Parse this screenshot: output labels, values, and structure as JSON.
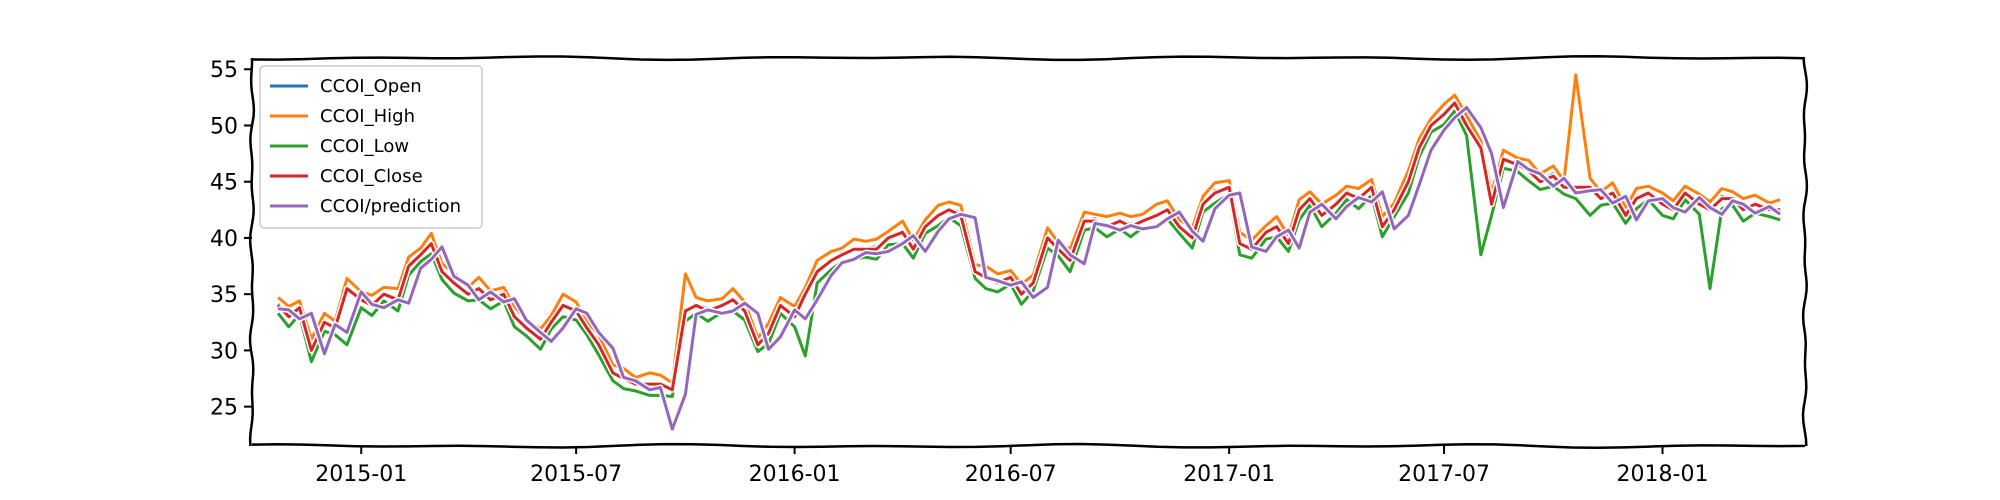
{
  "chart_data": {
    "type": "line",
    "title": "",
    "xlabel": "",
    "ylabel": "",
    "x_range": [
      "2014-10-01",
      "2018-05-01"
    ],
    "ylim": [
      21.5,
      56
    ],
    "x_ticks": [
      {
        "date": "2015-01-01",
        "label": "2015-01"
      },
      {
        "date": "2015-07-01",
        "label": "2015-07"
      },
      {
        "date": "2016-01-01",
        "label": "2016-01"
      },
      {
        "date": "2016-07-01",
        "label": "2016-07"
      },
      {
        "date": "2017-01-01",
        "label": "2017-01"
      },
      {
        "date": "2017-07-01",
        "label": "2017-07"
      },
      {
        "date": "2018-01-01",
        "label": "2018-01"
      }
    ],
    "y_ticks": [
      {
        "value": 25,
        "label": "25"
      },
      {
        "value": 30,
        "label": "30"
      },
      {
        "value": 35,
        "label": "35"
      },
      {
        "value": 40,
        "label": "40"
      },
      {
        "value": 45,
        "label": "45"
      },
      {
        "value": 50,
        "label": "50"
      },
      {
        "value": 55,
        "label": "55"
      }
    ],
    "grid": false,
    "legend_position": "top-left",
    "dates": [
      "2014-10-23",
      "2014-11-01",
      "2014-11-10",
      "2014-11-20",
      "2014-12-01",
      "2014-12-10",
      "2014-12-20",
      "2015-01-01",
      "2015-01-10",
      "2015-01-20",
      "2015-02-01",
      "2015-02-10",
      "2015-02-20",
      "2015-03-01",
      "2015-03-10",
      "2015-03-20",
      "2015-04-01",
      "2015-04-10",
      "2015-04-20",
      "2015-05-01",
      "2015-05-10",
      "2015-05-20",
      "2015-06-01",
      "2015-06-10",
      "2015-06-20",
      "2015-07-01",
      "2015-07-10",
      "2015-07-20",
      "2015-08-01",
      "2015-08-10",
      "2015-08-20",
      "2015-09-01",
      "2015-09-10",
      "2015-09-20",
      "2015-10-01",
      "2015-10-10",
      "2015-10-20",
      "2015-11-01",
      "2015-11-10",
      "2015-11-20",
      "2015-12-01",
      "2015-12-10",
      "2015-12-20",
      "2016-01-01",
      "2016-01-10",
      "2016-01-20",
      "2016-02-01",
      "2016-02-10",
      "2016-02-20",
      "2016-03-01",
      "2016-03-10",
      "2016-03-20",
      "2016-04-01",
      "2016-04-10",
      "2016-04-20",
      "2016-05-01",
      "2016-05-10",
      "2016-05-20",
      "2016-06-01",
      "2016-06-10",
      "2016-06-20",
      "2016-07-01",
      "2016-07-10",
      "2016-07-20",
      "2016-08-01",
      "2016-08-10",
      "2016-08-20",
      "2016-09-01",
      "2016-09-10",
      "2016-09-20",
      "2016-10-01",
      "2016-10-10",
      "2016-10-20",
      "2016-11-01",
      "2016-11-10",
      "2016-11-20",
      "2016-12-01",
      "2016-12-10",
      "2016-12-20",
      "2017-01-01",
      "2017-01-10",
      "2017-01-20",
      "2017-02-01",
      "2017-02-10",
      "2017-02-20",
      "2017-03-01",
      "2017-03-10",
      "2017-03-20",
      "2017-04-01",
      "2017-04-10",
      "2017-04-20",
      "2017-05-01",
      "2017-05-10",
      "2017-05-20",
      "2017-06-01",
      "2017-06-10",
      "2017-06-20",
      "2017-07-01",
      "2017-07-10",
      "2017-07-20",
      "2017-08-01",
      "2017-08-10",
      "2017-08-20",
      "2017-09-01",
      "2017-09-10",
      "2017-09-20",
      "2017-10-01",
      "2017-10-10",
      "2017-10-20",
      "2017-11-01",
      "2017-11-10",
      "2017-11-20",
      "2017-12-01",
      "2017-12-10",
      "2017-12-20",
      "2018-01-01",
      "2018-01-10",
      "2018-01-20",
      "2018-02-01",
      "2018-02-10",
      "2018-02-20",
      "2018-03-01",
      "2018-03-10",
      "2018-03-20",
      "2018-04-01",
      "2018-04-10"
    ],
    "close": [
      34.0,
      33.0,
      33.8,
      30.0,
      32.5,
      32.0,
      35.5,
      34.5,
      34.0,
      35.0,
      34.5,
      37.5,
      38.5,
      39.5,
      37.0,
      36.0,
      35.0,
      35.5,
      34.5,
      35.0,
      33.0,
      32.0,
      31.0,
      32.5,
      34.0,
      33.5,
      32.0,
      30.5,
      28.0,
      27.5,
      27.0,
      27.0,
      27.0,
      26.5,
      33.5,
      34.0,
      33.5,
      34.0,
      34.5,
      33.5,
      30.5,
      31.5,
      34.0,
      33.0,
      35.0,
      37.0,
      38.0,
      38.5,
      39.0,
      39.0,
      39.0,
      40.0,
      40.5,
      39.0,
      41.0,
      42.0,
      42.5,
      42.0,
      37.0,
      36.5,
      36.0,
      36.5,
      35.0,
      36.0,
      40.0,
      39.0,
      38.0,
      41.5,
      41.5,
      41.0,
      41.5,
      41.0,
      41.5,
      42.0,
      42.5,
      41.0,
      40.0,
      43.0,
      44.0,
      44.5,
      39.5,
      39.0,
      40.5,
      41.0,
      39.5,
      42.5,
      43.5,
      42.0,
      43.0,
      44.0,
      43.5,
      44.5,
      41.0,
      42.5,
      45.0,
      48.0,
      50.0,
      51.0,
      52.0,
      50.0,
      48.0,
      43.0,
      47.0,
      46.5,
      46.0,
      45.0,
      45.5,
      44.5,
      44.5,
      44.5,
      43.5,
      44.0,
      42.0,
      43.5,
      44.0,
      43.0,
      42.5,
      44.0,
      43.0,
      42.5,
      43.5,
      43.5,
      42.5,
      43.0,
      42.5,
      42.5
    ],
    "series": [
      {
        "name": "CCOI_Open",
        "color": "#1f77b4",
        "offsets": [
          0.1,
          0.2,
          -0.1,
          0.1,
          0.0,
          0.2,
          -0.1
        ],
        "lag": 0
      },
      {
        "name": "CCOI_High",
        "color": "#ff7f0e",
        "offsets": [
          0.7,
          0.9,
          0.6,
          1.0,
          0.8,
          0.6,
          0.9
        ],
        "lag": 0
      },
      {
        "name": "CCOI_Low",
        "color": "#2ca02c",
        "offsets": [
          -0.7,
          -0.9,
          -0.6,
          -1.0,
          -0.8,
          -0.6,
          -0.9
        ],
        "lag": 0
      },
      {
        "name": "CCOI_Close",
        "color": "#d62728",
        "offsets": [
          0,
          0,
          0,
          0,
          0,
          0,
          0
        ],
        "lag": 0
      },
      {
        "name": "CCOI/prediction",
        "color": "#9467bd",
        "offsets": [
          -0.3,
          -0.4,
          -0.2,
          -0.5,
          -0.3,
          -0.2,
          -0.4
        ],
        "lag": 1
      }
    ],
    "spikes": [
      {
        "series": "CCOI_Low",
        "date": "2014-12-20",
        "value": 30.5
      },
      {
        "series": "CCOI_Low",
        "date": "2015-09-10",
        "value": 26.0
      },
      {
        "series": "CCOI/prediction",
        "date": "2015-09-20",
        "value": 23.0
      },
      {
        "series": "CCOI_High",
        "date": "2015-10-01",
        "value": 36.8
      },
      {
        "series": "CCOI_Low",
        "date": "2016-01-10",
        "value": 29.5
      },
      {
        "series": "CCOI_Low",
        "date": "2017-08-01",
        "value": 38.5
      },
      {
        "series": "CCOI_High",
        "date": "2017-10-20",
        "value": 54.5
      },
      {
        "series": "CCOI_Low",
        "date": "2017-11-01",
        "value": 42.0
      },
      {
        "series": "CCOI_Low",
        "date": "2018-02-10",
        "value": 35.5
      }
    ]
  }
}
